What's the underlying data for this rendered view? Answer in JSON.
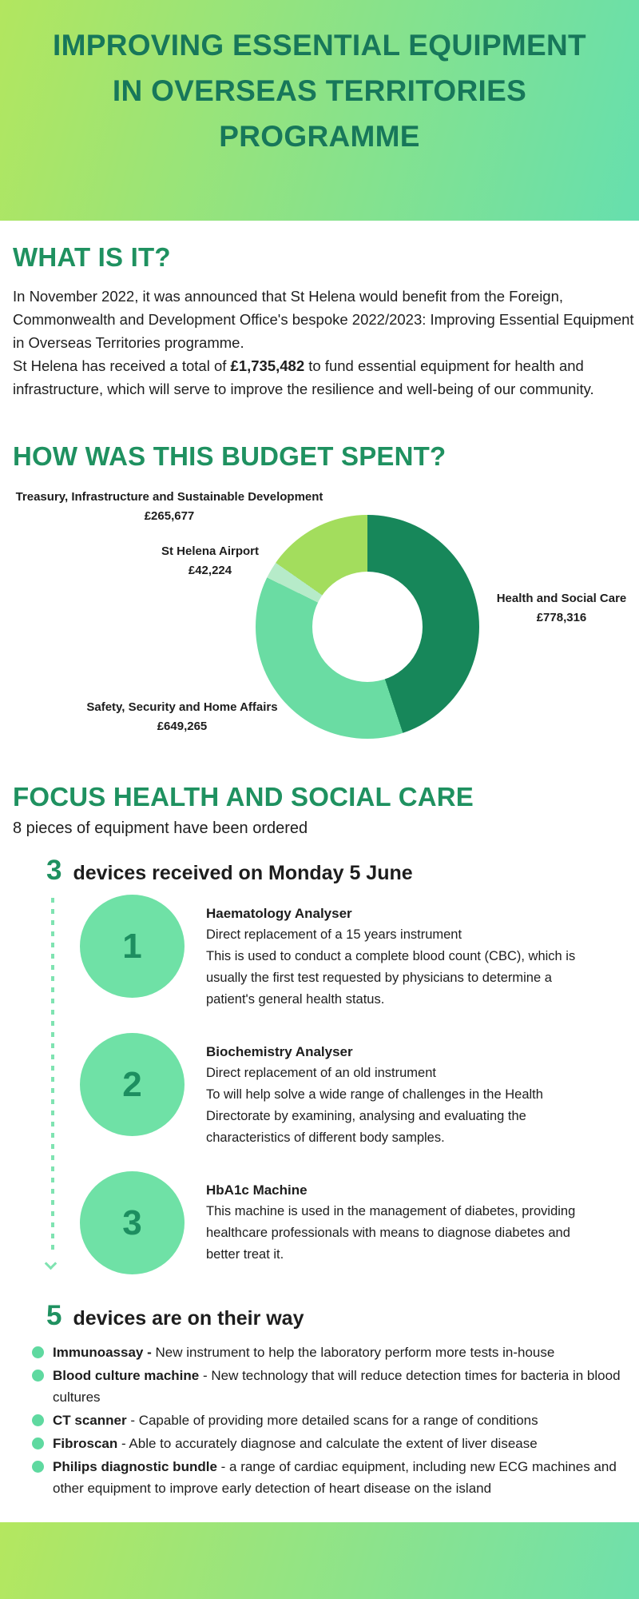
{
  "colors": {
    "grad_from": "#b2e65f",
    "grad_to": "#66dfae",
    "title_green": "#17775a",
    "heading_green": "#1f9160",
    "text_dark": "#1e1e1e",
    "mint": "#6fe1a6",
    "mint_dark": "#1d8e60"
  },
  "header": {
    "title_line1": "IMPROVING ESSENTIAL EQUIPMENT",
    "title_line2": "IN OVERSEAS TERRITORIES",
    "title_line3": "PROGRAMME"
  },
  "what_is_it": {
    "heading": "WHAT IS IT?",
    "para1": "In November 2022, it was announced that St Helena would benefit from the Foreign, Commonwealth and Development Office's bespoke 2022/2023: Improving Essential Equipment in Overseas Territories programme.",
    "para2_before": "St Helena has received a total of ",
    "para2_bold": "£1,735,482",
    "para2_after": " to fund essential equipment for health and infrastructure, which will serve to improve the resilience and well-being of our community."
  },
  "budget_heading": "HOW WAS THIS BUDGET SPENT?",
  "chart_data": {
    "type": "pie",
    "subtype": "donut",
    "title": "HOW WAS THIS BUDGET SPENT?",
    "categories": [
      "Health and Social Care",
      "Safety, Security and Home Affairs",
      "St Helena Airport",
      "Treasury, Infrastructure and Sustainable Development"
    ],
    "values": [
      778316,
      649265,
      42224,
      265677
    ],
    "value_labels": [
      "£778,316",
      "£649,265",
      "£42,224",
      "£265,677"
    ],
    "colors": [
      "#17875a",
      "#6adca3",
      "#b6ebc9",
      "#a3dd5d"
    ],
    "total": 1735482,
    "start_angle_deg": 0,
    "direction": "clockwise",
    "inner_radius_ratio": 0.49,
    "legend_position": "labels-around-chart"
  },
  "focus": {
    "heading": "FOCUS HEALTH AND SOCIAL CARE",
    "subheading": "8 pieces of equipment have been ordered",
    "received": {
      "count": "3",
      "title": "devices received on Monday 5 June",
      "items": [
        {
          "number": "1",
          "name": "Haematology Analyser",
          "desc1": "Direct replacement of a 15 years instrument",
          "desc2": "This is used to conduct a complete blood count (CBC), which is usually the first test requested by physicians to determine a patient's general health status."
        },
        {
          "number": "2",
          "name": "Biochemistry Analyser",
          "desc1": "Direct replacement of an old instrument",
          "desc2": "To will help solve a wide range of challenges in the Health Directorate by examining, analysing and evaluating the characteristics of different body samples."
        },
        {
          "number": "3",
          "name": "HbA1c Machine",
          "desc1": "This machine is used in the management of diabetes, providing healthcare professionals with means to diagnose diabetes and better treat it.",
          "desc2": ""
        }
      ]
    },
    "on_their_way": {
      "count": "5",
      "title": "devices are on their way",
      "items": [
        {
          "name": "Immunoassay -",
          "desc": " New instrument to help the laboratory perform more tests in-house"
        },
        {
          "name": "Blood culture machine",
          "desc": " - New technology that will reduce detection times for bacteria in blood cultures"
        },
        {
          "name": "CT scanner",
          "desc": " - Capable of providing more detailed scans for a range of conditions"
        },
        {
          "name": "Fibroscan",
          "desc": " - Able to accurately diagnose and calculate the extent of liver disease"
        },
        {
          "name": "Philips diagnostic bundle",
          "desc": " - a range of cardiac equipment, including new ECG machines and other equipment to improve early detection of heart disease on the island"
        }
      ]
    }
  }
}
